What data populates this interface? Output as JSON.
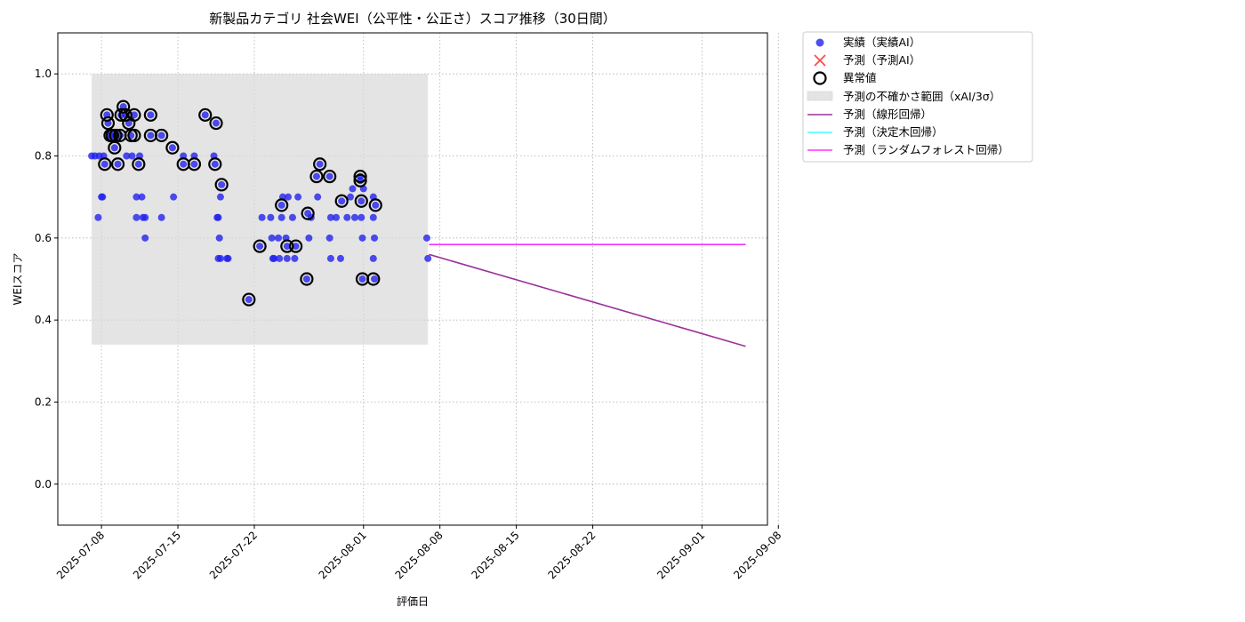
{
  "chart_data": {
    "type": "scatter",
    "title": "新製品カテゴリ 社会WEI（公平性・公正さ）スコア推移（30日間）",
    "xlabel": "評価日",
    "ylabel": "WEIスコア",
    "xlim": [
      "2025-07-04",
      "2025-09-07"
    ],
    "ylim": [
      -0.1,
      1.1
    ],
    "yticks": [
      0.0,
      0.2,
      0.4,
      0.6,
      0.8,
      1.0
    ],
    "ytick_labels": [
      "0.0",
      "0.2",
      "0.4",
      "0.6",
      "0.8",
      "1.0"
    ],
    "xticks": [
      "2025-07-08",
      "2025-07-15",
      "2025-07-22",
      "2025-08-01",
      "2025-08-08",
      "2025-08-15",
      "2025-08-22",
      "2025-09-01",
      "2025-09-08"
    ],
    "grid": true,
    "legend_position": "outside-upper-right",
    "colors": {
      "actual": "#2222ee",
      "forecast_marker": "#ff4444",
      "anomaly": "#000000",
      "uncertainty": "#d9d9d9",
      "linear": "#993399",
      "tree": "#44ffff",
      "forest": "#ff33ff"
    },
    "legend": [
      {
        "key": "actual",
        "label": "実績（実績AI）"
      },
      {
        "key": "forecast",
        "label": "予測（予測AI）"
      },
      {
        "key": "anomaly",
        "label": "異常値"
      },
      {
        "key": "uncertainty",
        "label": "予測の不確かさ範囲（xAI/3σ）"
      },
      {
        "key": "linear",
        "label": "予測（線形回帰）"
      },
      {
        "key": "tree",
        "label": "予測（決定木回帰）"
      },
      {
        "key": "forest",
        "label": "予測（ランダムフォレスト回帰）"
      }
    ],
    "uncertainty_band": {
      "x": [
        "2025-07-07.1",
        "2025-08-06.9"
      ],
      "y": [
        0.34,
        1.0
      ]
    },
    "actual_points": [
      [
        "2025-07-07.1",
        0.8
      ],
      [
        "2025-07-07.4",
        0.8
      ],
      [
        "2025-07-07.7",
        0.65
      ],
      [
        "2025-07-07.8",
        0.8
      ],
      [
        "2025-07-08.0",
        0.7
      ],
      [
        "2025-07-08.1",
        0.7
      ],
      [
        "2025-07-08.2",
        0.8
      ],
      [
        "2025-07-08.3",
        0.78
      ],
      [
        "2025-07-08.5",
        0.9
      ],
      [
        "2025-07-08.6",
        0.88
      ],
      [
        "2025-07-08.8",
        0.85
      ],
      [
        "2025-07-09.0",
        0.85
      ],
      [
        "2025-07-09.2",
        0.82
      ],
      [
        "2025-07-09.3",
        0.85
      ],
      [
        "2025-07-09.5",
        0.78
      ],
      [
        "2025-07-09.7",
        0.85
      ],
      [
        "2025-07-09.8",
        0.9
      ],
      [
        "2025-07-10.0",
        0.92
      ],
      [
        "2025-07-10.2",
        0.9
      ],
      [
        "2025-07-10.3",
        0.8
      ],
      [
        "2025-07-10.5",
        0.88
      ],
      [
        "2025-07-10.7",
        0.85
      ],
      [
        "2025-07-10.8",
        0.8
      ],
      [
        "2025-07-11.0",
        0.9
      ],
      [
        "2025-07-11.2",
        0.7
      ],
      [
        "2025-07-11.2",
        0.65
      ],
      [
        "2025-07-11.4",
        0.78
      ],
      [
        "2025-07-11.5",
        0.8
      ],
      [
        "2025-07-11.7",
        0.7
      ],
      [
        "2025-07-11.8",
        0.65
      ],
      [
        "2025-07-12.0",
        0.65
      ],
      [
        "2025-07-12.0",
        0.6
      ],
      [
        "2025-07-12.5",
        0.9
      ],
      [
        "2025-07-12.5",
        0.85
      ],
      [
        "2025-07-13.5",
        0.85
      ],
      [
        "2025-07-13.5",
        0.65
      ],
      [
        "2025-07-14.5",
        0.82
      ],
      [
        "2025-07-14.6",
        0.7
      ],
      [
        "2025-07-15.5",
        0.8
      ],
      [
        "2025-07-15.5",
        0.78
      ],
      [
        "2025-07-16.5",
        0.8
      ],
      [
        "2025-07-16.5",
        0.78
      ],
      [
        "2025-07-17.5",
        0.9
      ],
      [
        "2025-07-18.3",
        0.8
      ],
      [
        "2025-07-18.4",
        0.78
      ],
      [
        "2025-07-18.5",
        0.88
      ],
      [
        "2025-07-18.6",
        0.65
      ],
      [
        "2025-07-18.7",
        0.65
      ],
      [
        "2025-07-18.7",
        0.55
      ],
      [
        "2025-07-18.8",
        0.6
      ],
      [
        "2025-07-18.9",
        0.55
      ],
      [
        "2025-07-18.9",
        0.7
      ],
      [
        "2025-07-19.0",
        0.73
      ],
      [
        "2025-07-19.5",
        0.55
      ],
      [
        "2025-07-19.6",
        0.55
      ],
      [
        "2025-07-21.5",
        0.45
      ],
      [
        "2025-07-22.5",
        0.58
      ],
      [
        "2025-07-22.7",
        0.65
      ],
      [
        "2025-07-23.5",
        0.65
      ],
      [
        "2025-07-23.6",
        0.6
      ],
      [
        "2025-07-23.7",
        0.55
      ],
      [
        "2025-07-23.8",
        0.55
      ],
      [
        "2025-07-24.2",
        0.6
      ],
      [
        "2025-07-24.3",
        0.55
      ],
      [
        "2025-07-24.5",
        0.68
      ],
      [
        "2025-07-24.5",
        0.65
      ],
      [
        "2025-07-24.6",
        0.7
      ],
      [
        "2025-07-24.9",
        0.6
      ],
      [
        "2025-07-25.0",
        0.58
      ],
      [
        "2025-07-25.0",
        0.55
      ],
      [
        "2025-07-25.1",
        0.7
      ],
      [
        "2025-07-25.5",
        0.65
      ],
      [
        "2025-07-25.7",
        0.55
      ],
      [
        "2025-07-25.8",
        0.58
      ],
      [
        "2025-07-26.0",
        0.7
      ],
      [
        "2025-07-26.8",
        0.5
      ],
      [
        "2025-07-26.9",
        0.66
      ],
      [
        "2025-07-27.0",
        0.6
      ],
      [
        "2025-07-27.2",
        0.65
      ],
      [
        "2025-07-27.7",
        0.75
      ],
      [
        "2025-07-27.8",
        0.7
      ],
      [
        "2025-07-28.0",
        0.78
      ],
      [
        "2025-07-28.9",
        0.75
      ],
      [
        "2025-07-28.9",
        0.6
      ],
      [
        "2025-07-29.0",
        0.55
      ],
      [
        "2025-07-29.0",
        0.65
      ],
      [
        "2025-07-29.5",
        0.65
      ],
      [
        "2025-07-30.0",
        0.69
      ],
      [
        "2025-07-29.9",
        0.55
      ],
      [
        "2025-07-30.5",
        0.65
      ],
      [
        "2025-07-30.8",
        0.7
      ],
      [
        "2025-07-31.0",
        0.72
      ],
      [
        "2025-07-31.2",
        0.65
      ],
      [
        "2025-07-31.7",
        0.75
      ],
      [
        "2025-07-31.7",
        0.74
      ],
      [
        "2025-07-31.8",
        0.69
      ],
      [
        "2025-07-31.8",
        0.65
      ],
      [
        "2025-07-31.9",
        0.6
      ],
      [
        "2025-07-31.9",
        0.5
      ],
      [
        "2025-08-01.0",
        0.72
      ],
      [
        "2025-08-01.9",
        0.7
      ],
      [
        "2025-08-01.9",
        0.65
      ],
      [
        "2025-08-02.0",
        0.6
      ],
      [
        "2025-08-02.0",
        0.5
      ],
      [
        "2025-08-02.1",
        0.68
      ],
      [
        "2025-08-01.9",
        0.55
      ],
      [
        "2025-08-06.8",
        0.6
      ],
      [
        "2025-08-06.9",
        0.55
      ]
    ],
    "anomaly_points": [
      [
        "2025-07-08.3",
        0.78
      ],
      [
        "2025-07-08.5",
        0.9
      ],
      [
        "2025-07-08.6",
        0.88
      ],
      [
        "2025-07-08.8",
        0.85
      ],
      [
        "2025-07-09.0",
        0.85
      ],
      [
        "2025-07-09.2",
        0.82
      ],
      [
        "2025-07-09.3",
        0.85
      ],
      [
        "2025-07-09.5",
        0.78
      ],
      [
        "2025-07-09.7",
        0.85
      ],
      [
        "2025-07-09.8",
        0.9
      ],
      [
        "2025-07-10.0",
        0.92
      ],
      [
        "2025-07-10.2",
        0.9
      ],
      [
        "2025-07-10.5",
        0.88
      ],
      [
        "2025-07-10.7",
        0.85
      ],
      [
        "2025-07-11.0",
        0.9
      ],
      [
        "2025-07-11.0",
        0.85
      ],
      [
        "2025-07-11.4",
        0.78
      ],
      [
        "2025-07-12.5",
        0.9
      ],
      [
        "2025-07-12.5",
        0.85
      ],
      [
        "2025-07-13.5",
        0.85
      ],
      [
        "2025-07-14.5",
        0.82
      ],
      [
        "2025-07-15.5",
        0.78
      ],
      [
        "2025-07-16.5",
        0.78
      ],
      [
        "2025-07-17.5",
        0.9
      ],
      [
        "2025-07-18.4",
        0.78
      ],
      [
        "2025-07-18.5",
        0.88
      ],
      [
        "2025-07-19.0",
        0.73
      ],
      [
        "2025-07-21.5",
        0.45
      ],
      [
        "2025-07-22.5",
        0.58
      ],
      [
        "2025-07-24.5",
        0.68
      ],
      [
        "2025-07-25.0",
        0.58
      ],
      [
        "2025-07-25.8",
        0.58
      ],
      [
        "2025-07-26.8",
        0.5
      ],
      [
        "2025-07-26.9",
        0.66
      ],
      [
        "2025-07-27.7",
        0.75
      ],
      [
        "2025-07-28.0",
        0.78
      ],
      [
        "2025-07-28.9",
        0.75
      ],
      [
        "2025-07-30.0",
        0.69
      ],
      [
        "2025-07-31.7",
        0.75
      ],
      [
        "2025-07-31.7",
        0.74
      ],
      [
        "2025-07-31.8",
        0.69
      ],
      [
        "2025-07-31.9",
        0.5
      ],
      [
        "2025-08-01.9",
        0.5
      ],
      [
        "2025-08-02.1",
        0.68
      ]
    ],
    "forecast_lines": [
      {
        "key": "linear",
        "x": [
          "2025-08-07",
          "2025-09-05"
        ],
        "y": [
          0.56,
          0.336
        ]
      },
      {
        "key": "tree",
        "x": [
          "2025-08-07",
          "2025-09-05"
        ],
        "y": [
          0.584,
          0.584
        ]
      },
      {
        "key": "forest",
        "x": [
          "2025-08-07",
          "2025-09-05"
        ],
        "y": [
          0.584,
          0.584
        ]
      }
    ]
  }
}
